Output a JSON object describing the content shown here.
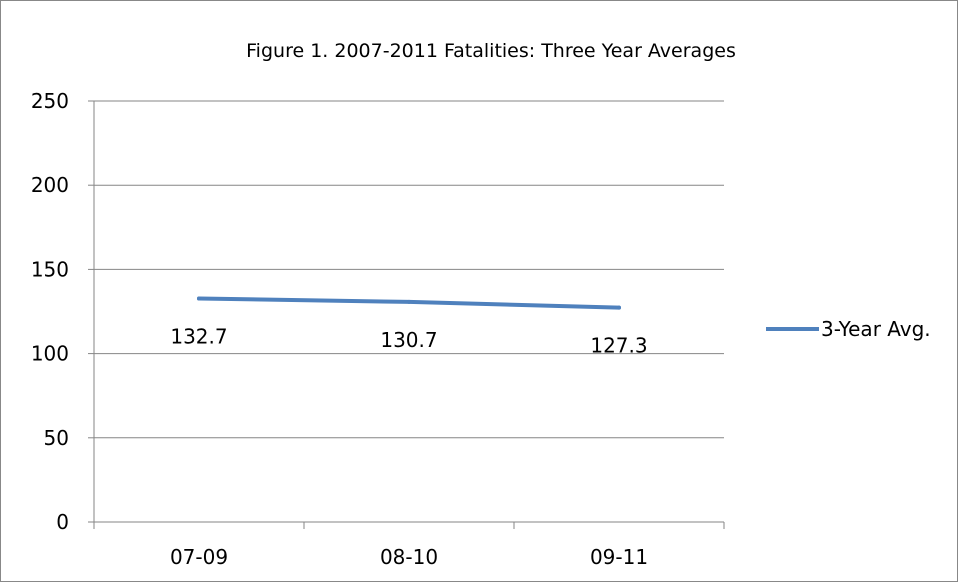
{
  "chart_data": {
    "type": "line",
    "title": "Figure 1. 2007-2011 Fatalities: Three Year Averages",
    "categories": [
      "07-09",
      "08-10",
      "09-11"
    ],
    "series": [
      {
        "name": "3-Year Avg.",
        "values": [
          132.7,
          130.7,
          127.3
        ],
        "labels": [
          "132.7",
          "130.7",
          "127.3"
        ]
      }
    ],
    "ylim": [
      0,
      250
    ],
    "yticks": [
      "0",
      "50",
      "100",
      "150",
      "200",
      "250"
    ],
    "grid": true,
    "legend": "right",
    "colors": {
      "series": "#4F81BD",
      "grid": "#868686",
      "axis": "#868686"
    }
  }
}
